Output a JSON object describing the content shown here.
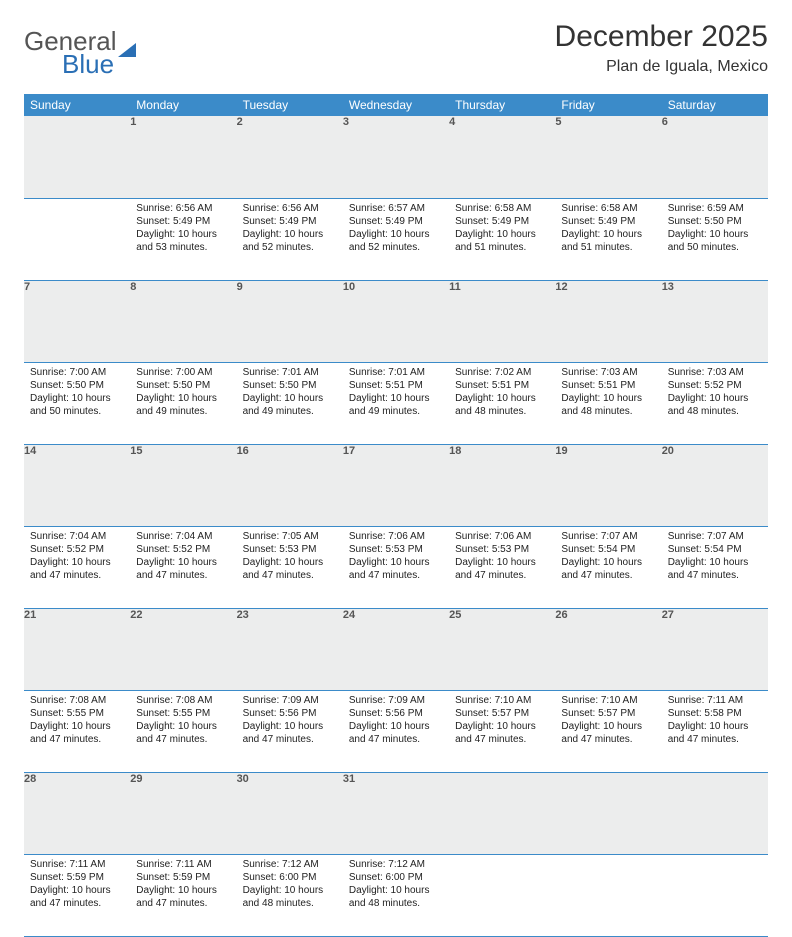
{
  "brand": {
    "part1": "General",
    "part2": "Blue"
  },
  "title": "December 2025",
  "location": "Plan de Iguala, Mexico",
  "colors": {
    "header_bg": "#3b8bc9",
    "header_text": "#ffffff",
    "daynum_bg": "#eceded",
    "rule": "#3b8bc9",
    "logo_blue": "#2a6fb5"
  },
  "weekdays": [
    "Sunday",
    "Monday",
    "Tuesday",
    "Wednesday",
    "Thursday",
    "Friday",
    "Saturday"
  ],
  "weeks": [
    {
      "nums": [
        "",
        "1",
        "2",
        "3",
        "4",
        "5",
        "6"
      ],
      "cells": [
        null,
        {
          "sunrise": "Sunrise: 6:56 AM",
          "sunset": "Sunset: 5:49 PM",
          "dl1": "Daylight: 10 hours",
          "dl2": "and 53 minutes."
        },
        {
          "sunrise": "Sunrise: 6:56 AM",
          "sunset": "Sunset: 5:49 PM",
          "dl1": "Daylight: 10 hours",
          "dl2": "and 52 minutes."
        },
        {
          "sunrise": "Sunrise: 6:57 AM",
          "sunset": "Sunset: 5:49 PM",
          "dl1": "Daylight: 10 hours",
          "dl2": "and 52 minutes."
        },
        {
          "sunrise": "Sunrise: 6:58 AM",
          "sunset": "Sunset: 5:49 PM",
          "dl1": "Daylight: 10 hours",
          "dl2": "and 51 minutes."
        },
        {
          "sunrise": "Sunrise: 6:58 AM",
          "sunset": "Sunset: 5:49 PM",
          "dl1": "Daylight: 10 hours",
          "dl2": "and 51 minutes."
        },
        {
          "sunrise": "Sunrise: 6:59 AM",
          "sunset": "Sunset: 5:50 PM",
          "dl1": "Daylight: 10 hours",
          "dl2": "and 50 minutes."
        }
      ]
    },
    {
      "nums": [
        "7",
        "8",
        "9",
        "10",
        "11",
        "12",
        "13"
      ],
      "cells": [
        {
          "sunrise": "Sunrise: 7:00 AM",
          "sunset": "Sunset: 5:50 PM",
          "dl1": "Daylight: 10 hours",
          "dl2": "and 50 minutes."
        },
        {
          "sunrise": "Sunrise: 7:00 AM",
          "sunset": "Sunset: 5:50 PM",
          "dl1": "Daylight: 10 hours",
          "dl2": "and 49 minutes."
        },
        {
          "sunrise": "Sunrise: 7:01 AM",
          "sunset": "Sunset: 5:50 PM",
          "dl1": "Daylight: 10 hours",
          "dl2": "and 49 minutes."
        },
        {
          "sunrise": "Sunrise: 7:01 AM",
          "sunset": "Sunset: 5:51 PM",
          "dl1": "Daylight: 10 hours",
          "dl2": "and 49 minutes."
        },
        {
          "sunrise": "Sunrise: 7:02 AM",
          "sunset": "Sunset: 5:51 PM",
          "dl1": "Daylight: 10 hours",
          "dl2": "and 48 minutes."
        },
        {
          "sunrise": "Sunrise: 7:03 AM",
          "sunset": "Sunset: 5:51 PM",
          "dl1": "Daylight: 10 hours",
          "dl2": "and 48 minutes."
        },
        {
          "sunrise": "Sunrise: 7:03 AM",
          "sunset": "Sunset: 5:52 PM",
          "dl1": "Daylight: 10 hours",
          "dl2": "and 48 minutes."
        }
      ]
    },
    {
      "nums": [
        "14",
        "15",
        "16",
        "17",
        "18",
        "19",
        "20"
      ],
      "cells": [
        {
          "sunrise": "Sunrise: 7:04 AM",
          "sunset": "Sunset: 5:52 PM",
          "dl1": "Daylight: 10 hours",
          "dl2": "and 47 minutes."
        },
        {
          "sunrise": "Sunrise: 7:04 AM",
          "sunset": "Sunset: 5:52 PM",
          "dl1": "Daylight: 10 hours",
          "dl2": "and 47 minutes."
        },
        {
          "sunrise": "Sunrise: 7:05 AM",
          "sunset": "Sunset: 5:53 PM",
          "dl1": "Daylight: 10 hours",
          "dl2": "and 47 minutes."
        },
        {
          "sunrise": "Sunrise: 7:06 AM",
          "sunset": "Sunset: 5:53 PM",
          "dl1": "Daylight: 10 hours",
          "dl2": "and 47 minutes."
        },
        {
          "sunrise": "Sunrise: 7:06 AM",
          "sunset": "Sunset: 5:53 PM",
          "dl1": "Daylight: 10 hours",
          "dl2": "and 47 minutes."
        },
        {
          "sunrise": "Sunrise: 7:07 AM",
          "sunset": "Sunset: 5:54 PM",
          "dl1": "Daylight: 10 hours",
          "dl2": "and 47 minutes."
        },
        {
          "sunrise": "Sunrise: 7:07 AM",
          "sunset": "Sunset: 5:54 PM",
          "dl1": "Daylight: 10 hours",
          "dl2": "and 47 minutes."
        }
      ]
    },
    {
      "nums": [
        "21",
        "22",
        "23",
        "24",
        "25",
        "26",
        "27"
      ],
      "cells": [
        {
          "sunrise": "Sunrise: 7:08 AM",
          "sunset": "Sunset: 5:55 PM",
          "dl1": "Daylight: 10 hours",
          "dl2": "and 47 minutes."
        },
        {
          "sunrise": "Sunrise: 7:08 AM",
          "sunset": "Sunset: 5:55 PM",
          "dl1": "Daylight: 10 hours",
          "dl2": "and 47 minutes."
        },
        {
          "sunrise": "Sunrise: 7:09 AM",
          "sunset": "Sunset: 5:56 PM",
          "dl1": "Daylight: 10 hours",
          "dl2": "and 47 minutes."
        },
        {
          "sunrise": "Sunrise: 7:09 AM",
          "sunset": "Sunset: 5:56 PM",
          "dl1": "Daylight: 10 hours",
          "dl2": "and 47 minutes."
        },
        {
          "sunrise": "Sunrise: 7:10 AM",
          "sunset": "Sunset: 5:57 PM",
          "dl1": "Daylight: 10 hours",
          "dl2": "and 47 minutes."
        },
        {
          "sunrise": "Sunrise: 7:10 AM",
          "sunset": "Sunset: 5:57 PM",
          "dl1": "Daylight: 10 hours",
          "dl2": "and 47 minutes."
        },
        {
          "sunrise": "Sunrise: 7:11 AM",
          "sunset": "Sunset: 5:58 PM",
          "dl1": "Daylight: 10 hours",
          "dl2": "and 47 minutes."
        }
      ]
    },
    {
      "nums": [
        "28",
        "29",
        "30",
        "31",
        "",
        "",
        ""
      ],
      "cells": [
        {
          "sunrise": "Sunrise: 7:11 AM",
          "sunset": "Sunset: 5:59 PM",
          "dl1": "Daylight: 10 hours",
          "dl2": "and 47 minutes."
        },
        {
          "sunrise": "Sunrise: 7:11 AM",
          "sunset": "Sunset: 5:59 PM",
          "dl1": "Daylight: 10 hours",
          "dl2": "and 47 minutes."
        },
        {
          "sunrise": "Sunrise: 7:12 AM",
          "sunset": "Sunset: 6:00 PM",
          "dl1": "Daylight: 10 hours",
          "dl2": "and 48 minutes."
        },
        {
          "sunrise": "Sunrise: 7:12 AM",
          "sunset": "Sunset: 6:00 PM",
          "dl1": "Daylight: 10 hours",
          "dl2": "and 48 minutes."
        },
        null,
        null,
        null
      ]
    }
  ]
}
